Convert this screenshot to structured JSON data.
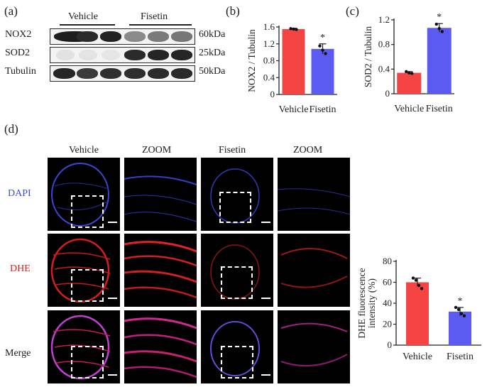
{
  "panel_a": {
    "letter": "(a)",
    "group_labels": [
      "Vehicle",
      "Fisetin"
    ],
    "rows": [
      {
        "protein": "NOX2",
        "size": "60kDa"
      },
      {
        "protein": "SOD2",
        "size": "25kDa"
      },
      {
        "protein": "Tubulin",
        "size": "50kDa"
      }
    ]
  },
  "panel_d": {
    "letter": "(d)",
    "column_headers": [
      "Vehicle",
      "ZOOM",
      "Fisetin",
      "ZOOM"
    ],
    "row_labels": [
      "DAPI",
      "DHE",
      "Merge"
    ],
    "colors": {
      "dapi": "#3a4fd8",
      "dhe": "#e02020",
      "merge": "#1a1a1a"
    }
  },
  "chart_data": [
    {
      "panel": "(b)",
      "type": "bar",
      "categories": [
        "Vehicle",
        "Fisetin"
      ],
      "values": [
        1.55,
        1.08
      ],
      "errors": [
        0.02,
        0.12
      ],
      "points": [
        [
          1.56,
          1.55,
          1.54
        ],
        [
          1.15,
          1.05,
          0.97
        ]
      ],
      "significance": [
        "",
        "*"
      ],
      "colors": [
        "#f54444",
        "#5b5bf2"
      ],
      "ylabel": "NOX2 / Tubulin",
      "ylim": [
        0,
        1.6
      ],
      "yticks": [
        "0",
        "0.4",
        "0.8",
        "1.2",
        "1.6"
      ]
    },
    {
      "panel": "(c)",
      "type": "bar",
      "categories": [
        "Vehicle",
        "Fisetin"
      ],
      "values": [
        0.34,
        1.07
      ],
      "errors": [
        0.02,
        0.07
      ],
      "points": [
        [
          0.36,
          0.34,
          0.33
        ],
        [
          1.13,
          1.06,
          1.01
        ]
      ],
      "significance": [
        "",
        "*"
      ],
      "colors": [
        "#f54444",
        "#5b5bf2"
      ],
      "ylabel": "SOD2 / Tubulin",
      "ylim": [
        0,
        1.2
      ],
      "yticks": [
        "0",
        "0.4",
        "0.8",
        "1.2"
      ]
    },
    {
      "panel": "(d)",
      "type": "bar",
      "categories": [
        "Vehicle",
        "Fisetin"
      ],
      "values": [
        60,
        32
      ],
      "errors": [
        4,
        4
      ],
      "points": [
        [
          64,
          62,
          57,
          54
        ],
        [
          36,
          34,
          30,
          28
        ]
      ],
      "significance": [
        "",
        "*"
      ],
      "colors": [
        "#f54444",
        "#5b5bf2"
      ],
      "ylabel": "DHE fluorescence intensity (%)",
      "ylim": [
        0,
        80
      ],
      "yticks": [
        "0",
        "20",
        "40",
        "60",
        "80"
      ]
    }
  ]
}
